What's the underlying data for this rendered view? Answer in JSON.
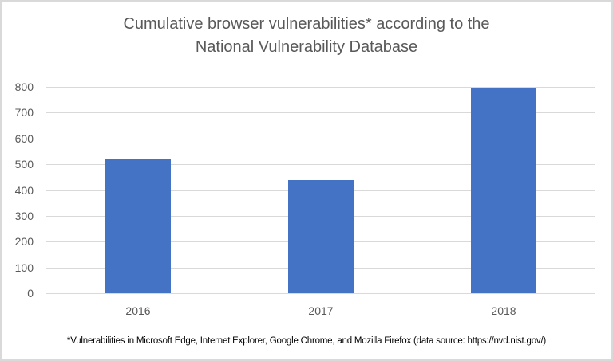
{
  "chart_data": {
    "type": "bar",
    "title": "Cumulative browser vulnerabilities* according to the National Vulnerability Database",
    "title_lines": [
      "Cumulative browser vulnerabilities* according to the",
      "National Vulnerability Database"
    ],
    "categories": [
      "2016",
      "2017",
      "2018"
    ],
    "values": [
      519,
      438,
      793
    ],
    "series": [
      {
        "name": "Vulnerabilities",
        "values": [
          519,
          438,
          793
        ],
        "color": "#4472c4"
      }
    ],
    "xlabel": "",
    "ylabel": "",
    "ylim": [
      0,
      800
    ],
    "yticks": [
      "0",
      "100",
      "200",
      "300",
      "400",
      "500",
      "600",
      "700",
      "800"
    ],
    "grid": true,
    "legend": null,
    "footnote": "*Vulnerabilities in Microsoft Edge, Internet Explorer, Google Chrome, and Mozilla Firefox (data source: https://nvd.nist.gov/)"
  },
  "colors": {
    "bar": "#4472c4",
    "gridline": "#d9d9d9",
    "text": "#595959",
    "border": "#d9d9d9"
  }
}
